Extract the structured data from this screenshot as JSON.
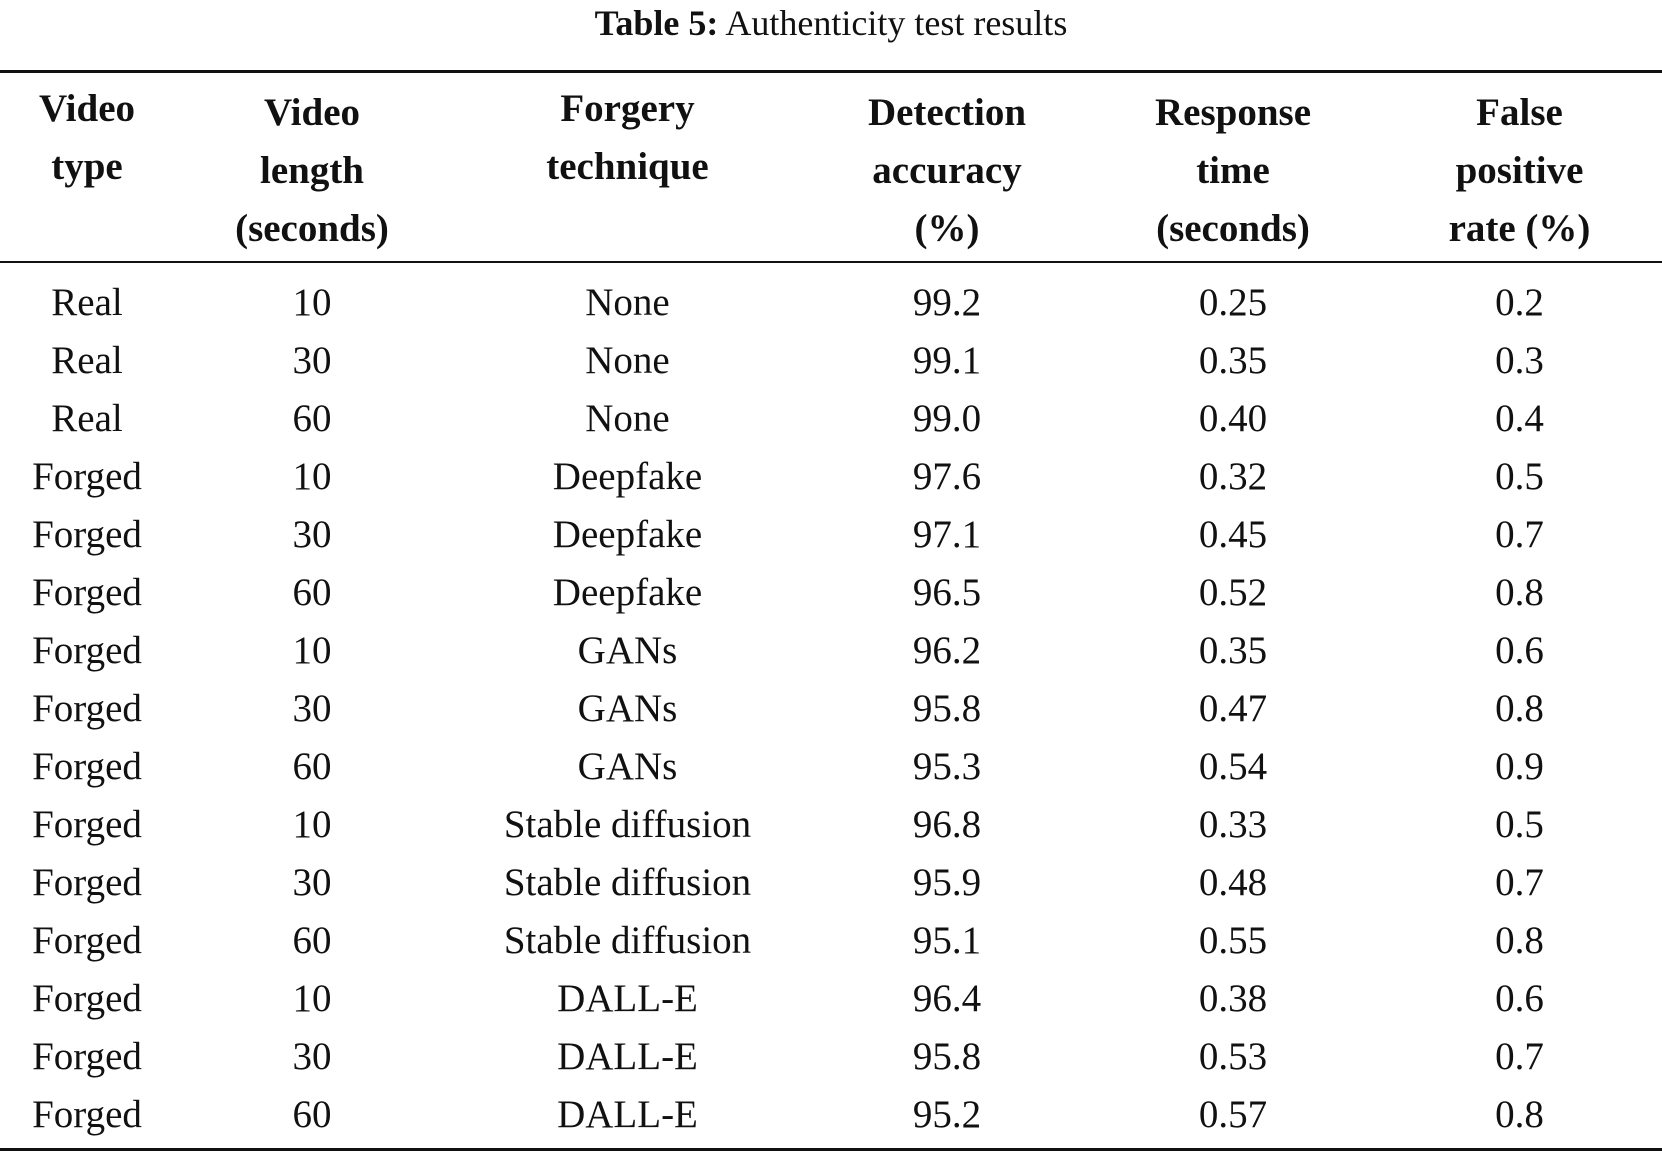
{
  "caption": {
    "label": "Table 5:",
    "title": "Authenticity test results"
  },
  "table": {
    "headers": [
      "Video\ntype",
      "Video\nlength\n(seconds)",
      "Forgery\ntechnique",
      "Detection\naccuracy\n(%)",
      "Response\ntime\n(seconds)",
      "False\npositive\nrate (%)"
    ],
    "rows": [
      [
        "Real",
        "10",
        "None",
        "99.2",
        "0.25",
        "0.2"
      ],
      [
        "Real",
        "30",
        "None",
        "99.1",
        "0.35",
        "0.3"
      ],
      [
        "Real",
        "60",
        "None",
        "99.0",
        "0.40",
        "0.4"
      ],
      [
        "Forged",
        "10",
        "Deepfake",
        "97.6",
        "0.32",
        "0.5"
      ],
      [
        "Forged",
        "30",
        "Deepfake",
        "97.1",
        "0.45",
        "0.7"
      ],
      [
        "Forged",
        "60",
        "Deepfake",
        "96.5",
        "0.52",
        "0.8"
      ],
      [
        "Forged",
        "10",
        "GANs",
        "96.2",
        "0.35",
        "0.6"
      ],
      [
        "Forged",
        "30",
        "GANs",
        "95.8",
        "0.47",
        "0.8"
      ],
      [
        "Forged",
        "60",
        "GANs",
        "95.3",
        "0.54",
        "0.9"
      ],
      [
        "Forged",
        "10",
        "Stable diffusion",
        "96.8",
        "0.33",
        "0.5"
      ],
      [
        "Forged",
        "30",
        "Stable diffusion",
        "95.9",
        "0.48",
        "0.7"
      ],
      [
        "Forged",
        "60",
        "Stable diffusion",
        "95.1",
        "0.55",
        "0.8"
      ],
      [
        "Forged",
        "10",
        "DALL-E",
        "96.4",
        "0.38",
        "0.6"
      ],
      [
        "Forged",
        "30",
        "DALL-E",
        "95.8",
        "0.53",
        "0.7"
      ],
      [
        "Forged",
        "60",
        "DALL-E",
        "95.2",
        "0.57",
        "0.8"
      ]
    ]
  }
}
